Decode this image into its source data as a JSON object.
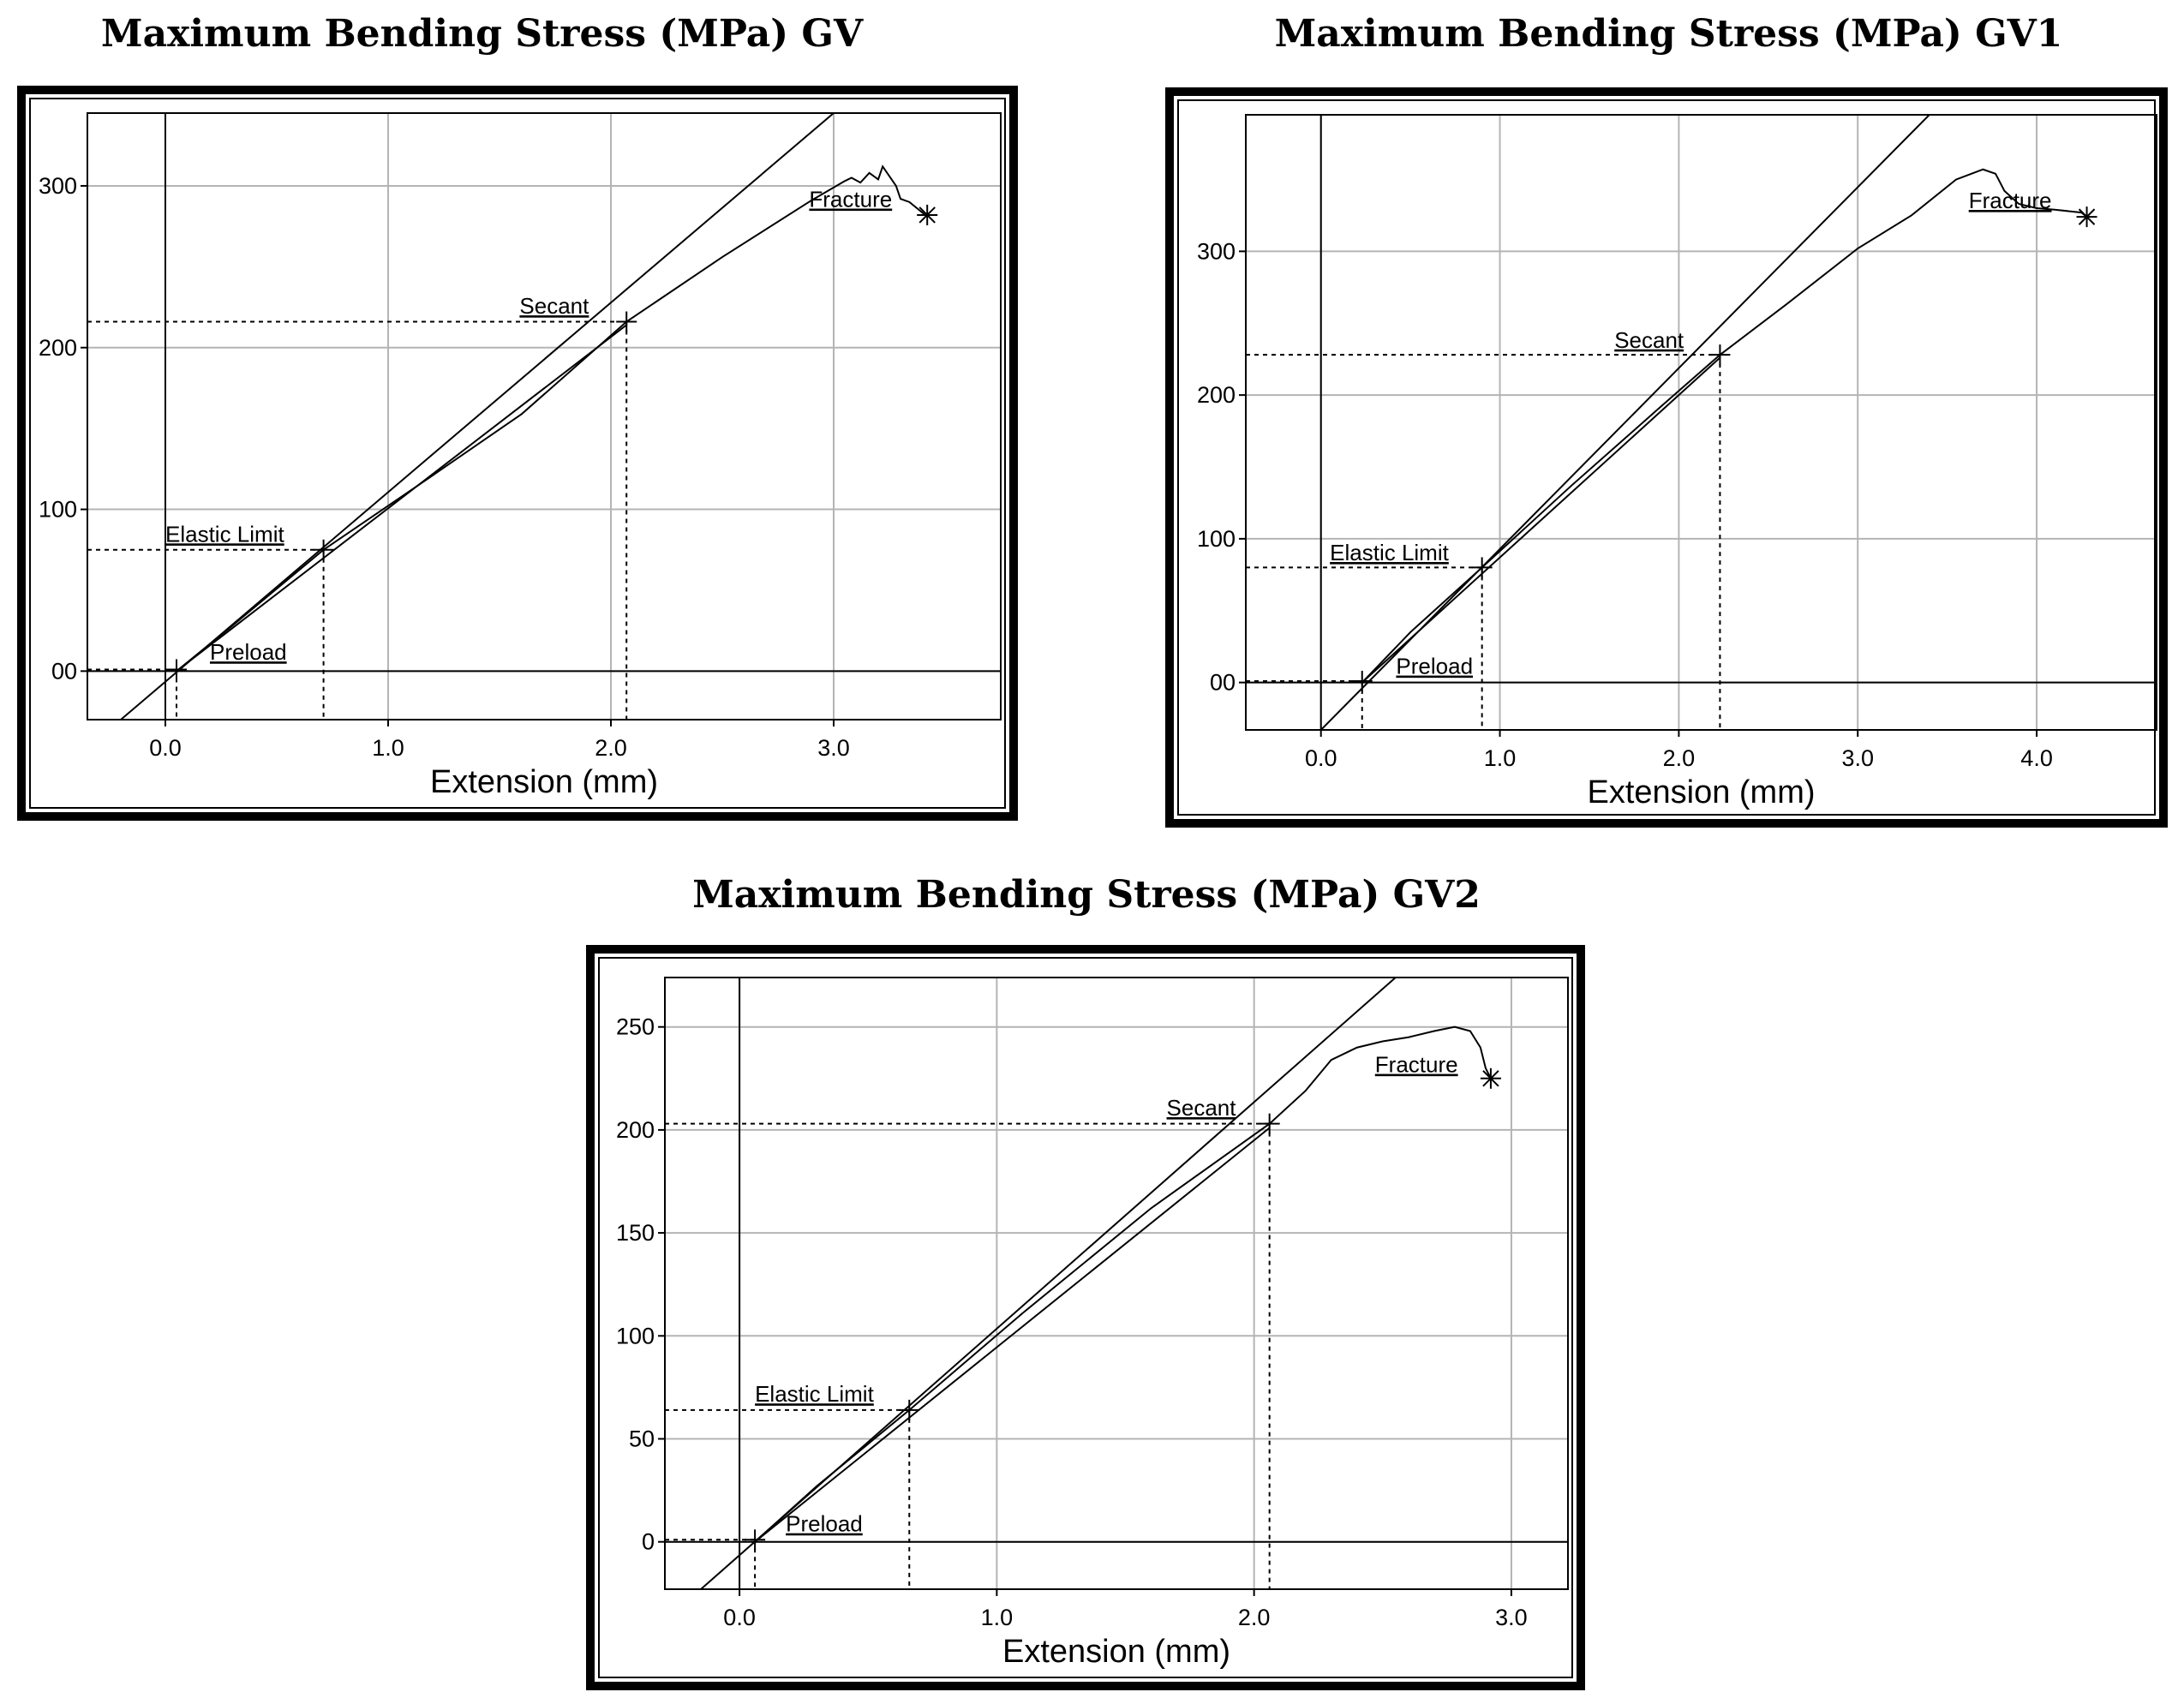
{
  "chart_data": [
    {
      "type": "line",
      "title": "Maximum Bending Stress (MPa) GV",
      "xlabel": "Extension (mm)",
      "ylabel": "",
      "xlim": [
        -0.35,
        3.75
      ],
      "ylim": [
        -30,
        345
      ],
      "xticks": [
        0.0,
        1.0,
        2.0,
        3.0
      ],
      "xtick_labels": [
        "0.0",
        "1.0",
        "2.0",
        "3.0"
      ],
      "yticks": [
        0,
        100,
        200,
        300
      ],
      "ytick_labels": [
        "00",
        "100",
        "200",
        "300"
      ],
      "grid": true,
      "colors": {
        "curve": "#000000",
        "grid": "#b4b4b4",
        "frame": "#000000"
      },
      "series": [
        {
          "type": "curve",
          "x": [
            0.05,
            0.3,
            0.71,
            1.2,
            1.6,
            2.07,
            2.5,
            2.9,
            3.05,
            3.08,
            3.12,
            3.16,
            3.2,
            3.22,
            3.28,
            3.3,
            3.34,
            3.42
          ],
          "y": [
            0,
            28,
            75,
            121,
            159,
            216,
            256,
            291,
            303,
            305,
            302,
            308,
            304,
            312,
            300,
            292,
            290,
            281
          ]
        },
        {
          "type": "secant-line",
          "x": [
            -0.2,
            3.0
          ],
          "y": [
            -30,
            345
          ]
        },
        {
          "type": "elastic-line",
          "x": [
            0.05,
            2.07
          ],
          "y": [
            0,
            214
          ]
        }
      ],
      "markers": [
        {
          "name": "Preload",
          "x": 0.05,
          "y": 1,
          "symbol": "plus"
        },
        {
          "name": "Elastic Limit",
          "x": 0.71,
          "y": 75,
          "symbol": "plus"
        },
        {
          "name": "Secant",
          "x": 2.07,
          "y": 216,
          "symbol": "plus"
        },
        {
          "name": "Fracture",
          "x": 3.42,
          "y": 282,
          "symbol": "asterisk"
        }
      ],
      "annotations": [
        {
          "text": "Preload",
          "x": 0.2,
          "y": 7
        },
        {
          "text": "Elastic Limit",
          "x": 0.0,
          "y": 80
        },
        {
          "text": "Secant",
          "x": 1.59,
          "y": 221
        },
        {
          "text": "Fracture",
          "x": 2.89,
          "y": 287
        }
      ]
    },
    {
      "type": "line",
      "title": "Maximum Bending Stress (MPa) GV1",
      "xlabel": "Extension (mm)",
      "ylabel": "",
      "xlim": [
        -0.42,
        4.67
      ],
      "ylim": [
        -33,
        395
      ],
      "xticks": [
        0.0,
        1.0,
        2.0,
        3.0,
        4.0
      ],
      "xtick_labels": [
        "0.0",
        "1.0",
        "2.0",
        "3.0",
        "4.0"
      ],
      "yticks": [
        0,
        100,
        200,
        300
      ],
      "ytick_labels": [
        "00",
        "100",
        "200",
        "300"
      ],
      "grid": true,
      "colors": {
        "curve": "#000000",
        "grid": "#b4b4b4",
        "frame": "#000000"
      },
      "series": [
        {
          "type": "curve",
          "x": [
            0.23,
            0.5,
            0.9,
            1.4,
            1.9,
            2.23,
            2.6,
            3.0,
            3.3,
            3.55,
            3.7,
            3.77,
            3.82,
            3.9,
            4.0,
            4.1,
            4.25,
            4.28
          ],
          "y": [
            0,
            35,
            80,
            137,
            192,
            228,
            263,
            302,
            325,
            350,
            357,
            354,
            342,
            333,
            330,
            329,
            327,
            324
          ]
        },
        {
          "type": "secant-line",
          "x": [
            0.0,
            3.4
          ],
          "y": [
            -33,
            395
          ]
        },
        {
          "type": "elastic-line",
          "x": [
            0.23,
            2.23
          ],
          "y": [
            0,
            226
          ]
        }
      ],
      "markers": [
        {
          "name": "Preload",
          "x": 0.23,
          "y": 1,
          "symbol": "plus"
        },
        {
          "name": "Elastic Limit",
          "x": 0.9,
          "y": 80,
          "symbol": "plus"
        },
        {
          "name": "Secant",
          "x": 2.23,
          "y": 228,
          "symbol": "plus"
        },
        {
          "name": "Fracture",
          "x": 4.28,
          "y": 324,
          "symbol": "asterisk"
        }
      ],
      "annotations": [
        {
          "text": "Preload",
          "x": 0.42,
          "y": 6
        },
        {
          "text": "Elastic Limit",
          "x": 0.05,
          "y": 85
        },
        {
          "text": "Secant",
          "x": 1.64,
          "y": 233
        },
        {
          "text": "Fracture",
          "x": 3.62,
          "y": 330
        }
      ]
    },
    {
      "type": "line",
      "title": "Maximum Bending Stress (MPa) GV2",
      "xlabel": "Extension (mm)",
      "ylabel": "",
      "xlim": [
        -0.29,
        3.22
      ],
      "ylim": [
        -23,
        274
      ],
      "xticks": [
        0.0,
        1.0,
        2.0,
        3.0
      ],
      "xtick_labels": [
        "0.0",
        "1.0",
        "2.0",
        "3.0"
      ],
      "yticks": [
        0,
        50,
        100,
        150,
        200,
        250
      ],
      "ytick_labels": [
        "0",
        "50",
        "100",
        "150",
        "200",
        "250"
      ],
      "grid": true,
      "colors": {
        "curve": "#000000",
        "grid": "#b4b4b4",
        "frame": "#000000"
      },
      "series": [
        {
          "type": "curve",
          "x": [
            0.06,
            0.3,
            0.66,
            1.1,
            1.6,
            2.06,
            2.2,
            2.3,
            2.4,
            2.5,
            2.6,
            2.7,
            2.78,
            2.84,
            2.88,
            2.9,
            2.92
          ],
          "y": [
            0,
            27,
            64,
            111,
            162,
            203,
            219,
            234,
            240,
            243,
            245,
            248,
            250,
            248,
            240,
            230,
            225
          ]
        },
        {
          "type": "secant-line",
          "x": [
            -0.15,
            2.55
          ],
          "y": [
            -23,
            274
          ]
        },
        {
          "type": "elastic-line",
          "x": [
            0.06,
            2.06
          ],
          "y": [
            0,
            201
          ]
        }
      ],
      "markers": [
        {
          "name": "Preload",
          "x": 0.06,
          "y": 1,
          "symbol": "plus"
        },
        {
          "name": "Elastic Limit",
          "x": 0.66,
          "y": 64,
          "symbol": "plus"
        },
        {
          "name": "Secant",
          "x": 2.06,
          "y": 203,
          "symbol": "plus"
        },
        {
          "name": "Fracture",
          "x": 2.92,
          "y": 225,
          "symbol": "asterisk"
        }
      ],
      "annotations": [
        {
          "text": "Preload",
          "x": 0.18,
          "y": 5
        },
        {
          "text": "Elastic Limit",
          "x": 0.06,
          "y": 68
        },
        {
          "text": "Secant",
          "x": 1.66,
          "y": 207
        },
        {
          "text": "Fracture",
          "x": 2.47,
          "y": 228
        }
      ]
    }
  ]
}
